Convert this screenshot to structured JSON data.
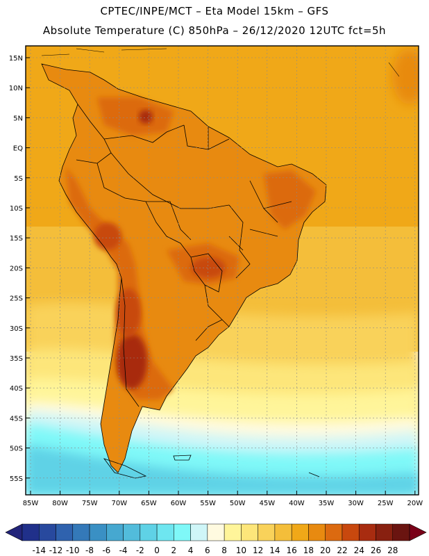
{
  "header": {
    "line1": "CPTEC/INPE/MCT –  Eta Model 15km – GFS",
    "line2": "Absolute Temperature (C) 850hPa – 26/12/2020 12UTC fct=5h"
  },
  "axes": {
    "lat_labels": [
      "15N",
      "10N",
      "5N",
      "EQ",
      "5S",
      "10S",
      "15S",
      "20S",
      "25S",
      "30S",
      "35S",
      "40S",
      "45S",
      "50S",
      "55S"
    ],
    "lon_labels": [
      "85W",
      "80W",
      "75W",
      "70W",
      "65W",
      "60W",
      "55W",
      "50W",
      "45W",
      "40W",
      "35W",
      "30W",
      "25W",
      "20W"
    ]
  },
  "colorbar": {
    "labels": [
      "-14",
      "-12",
      "-10",
      "-8",
      "-6",
      "-4",
      "-2",
      "0",
      "2",
      "4",
      "6",
      "8",
      "10",
      "12",
      "14",
      "16",
      "18",
      "20",
      "22",
      "24",
      "26",
      "28"
    ],
    "low_arrow_color": "#22247a",
    "high_arrow_color": "#7a0018",
    "colors": [
      "#20308a",
      "#28499e",
      "#2f62ae",
      "#3479b9",
      "#3a90c4",
      "#46a8d0",
      "#52bcdb",
      "#5fd2e6",
      "#6ee6f0",
      "#7ff8f8",
      "#cff6f8",
      "#fffae0",
      "#fff59a",
      "#fde67a",
      "#f9d25a",
      "#f4be3a",
      "#f0a818",
      "#e88a10",
      "#dc6a10",
      "#c8480e",
      "#a82c10",
      "#882010",
      "#6a1410"
    ]
  },
  "map_colors": {
    "ocean_tropical": "#f0a818",
    "ocean_subtropical": "#f4be3a",
    "ocean_mid": "#f9d25a",
    "ocean_cool": "#fde67a",
    "ocean_pale": "#fff59a",
    "ocean_cream": "#fffae0",
    "ocean_cold1": "#cff6f8",
    "ocean_cold2": "#7ff8f8",
    "ocean_cold3": "#5fd2e6",
    "land_warm": "#e88a10",
    "land_hot": "#dc6a10",
    "land_hotter": "#c8480e",
    "land_hottest": "#a82c10",
    "border": "#000000",
    "grid": "#8a8a8a"
  }
}
